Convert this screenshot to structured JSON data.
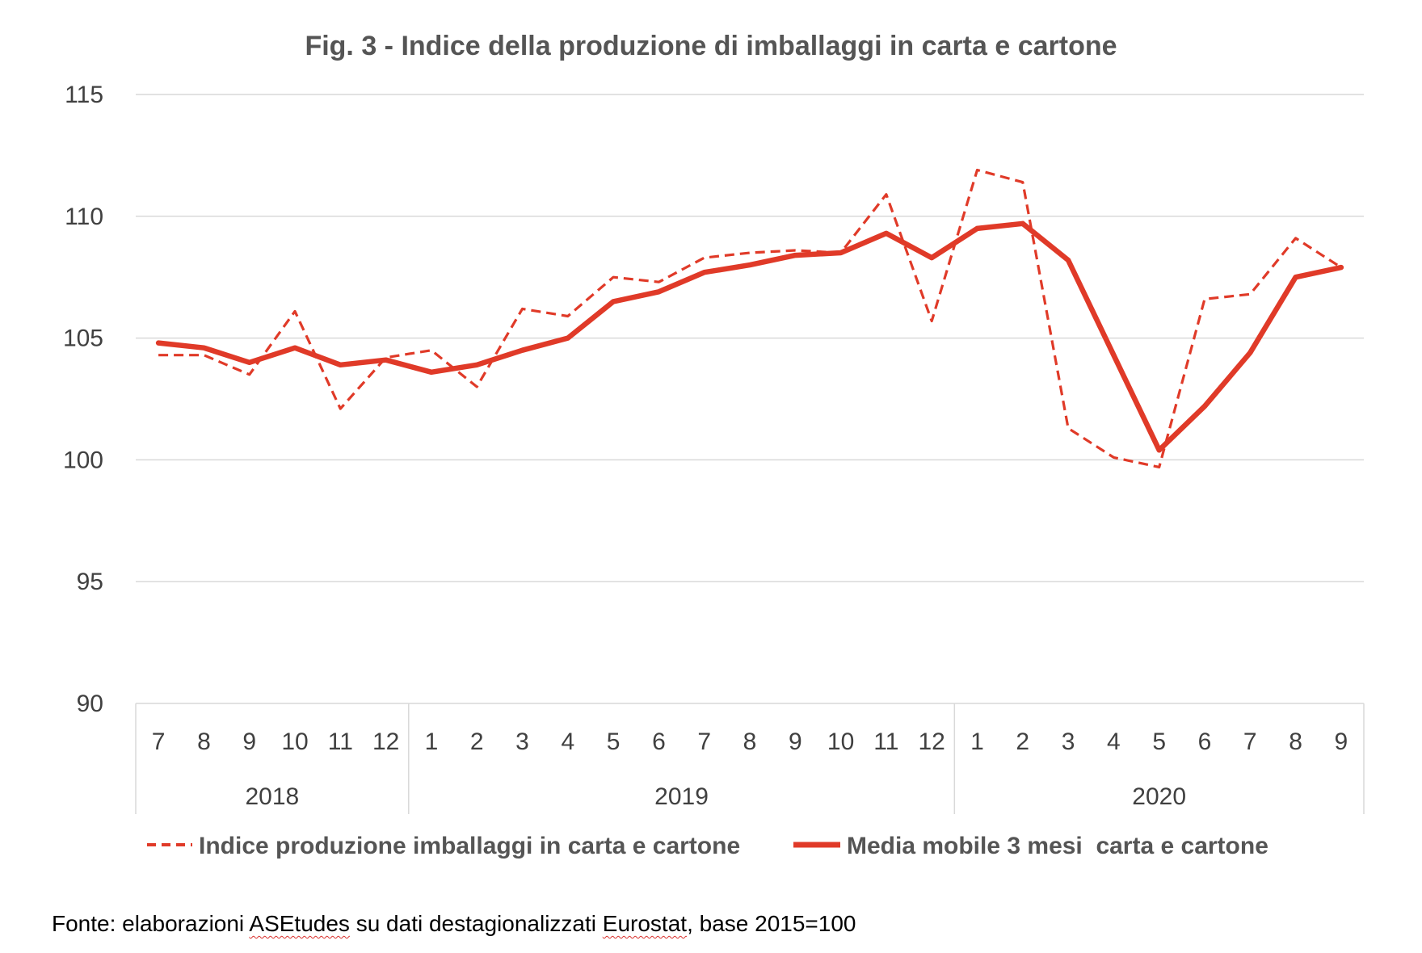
{
  "chart_data": {
    "type": "line",
    "title": "Fig. 3 - Indice della produzione di imballaggi in carta e cartone",
    "xlabel": "",
    "ylabel": "",
    "ylim": [
      90,
      115
    ],
    "yticks": [
      90,
      95,
      100,
      105,
      110,
      115
    ],
    "grid": true,
    "legend_position": "bottom",
    "categories": [
      "7",
      "8",
      "9",
      "10",
      "11",
      "12",
      "1",
      "2",
      "3",
      "4",
      "5",
      "6",
      "7",
      "8",
      "9",
      "10",
      "11",
      "12",
      "1",
      "2",
      "3",
      "4",
      "5",
      "6",
      "7",
      "8",
      "9"
    ],
    "year_groups": [
      {
        "label": "2018",
        "count": 6
      },
      {
        "label": "2019",
        "count": 12
      },
      {
        "label": "2020",
        "count": 9
      }
    ],
    "series": [
      {
        "name": "Indice produzione imballaggi in carta e cartone",
        "style": "dashed",
        "color": "#e03a28",
        "values": [
          104.3,
          104.3,
          103.5,
          106.1,
          102.1,
          104.2,
          104.5,
          103.0,
          106.2,
          105.9,
          107.5,
          107.3,
          108.3,
          108.5,
          108.6,
          108.5,
          110.9,
          105.7,
          111.9,
          111.4,
          101.3,
          100.1,
          99.7,
          106.6,
          106.8,
          109.1,
          107.9
        ]
      },
      {
        "name": "Media mobile 3 mesi  carta e cartone",
        "style": "solid",
        "color": "#e03a28",
        "values": [
          104.8,
          104.6,
          104.0,
          104.6,
          103.9,
          104.1,
          103.6,
          103.9,
          104.5,
          105.0,
          106.5,
          106.9,
          107.7,
          108.0,
          108.4,
          108.5,
          109.3,
          108.3,
          109.5,
          109.7,
          108.2,
          104.3,
          100.4,
          102.2,
          104.4,
          107.5,
          107.9
        ]
      }
    ]
  },
  "source": {
    "prefix": "Fonte: elaborazioni ",
    "org": "ASEtudes",
    "middle": " su dati destagionalizzati ",
    "agency": "Eurostat",
    "suffix": ", base 2015=100"
  }
}
